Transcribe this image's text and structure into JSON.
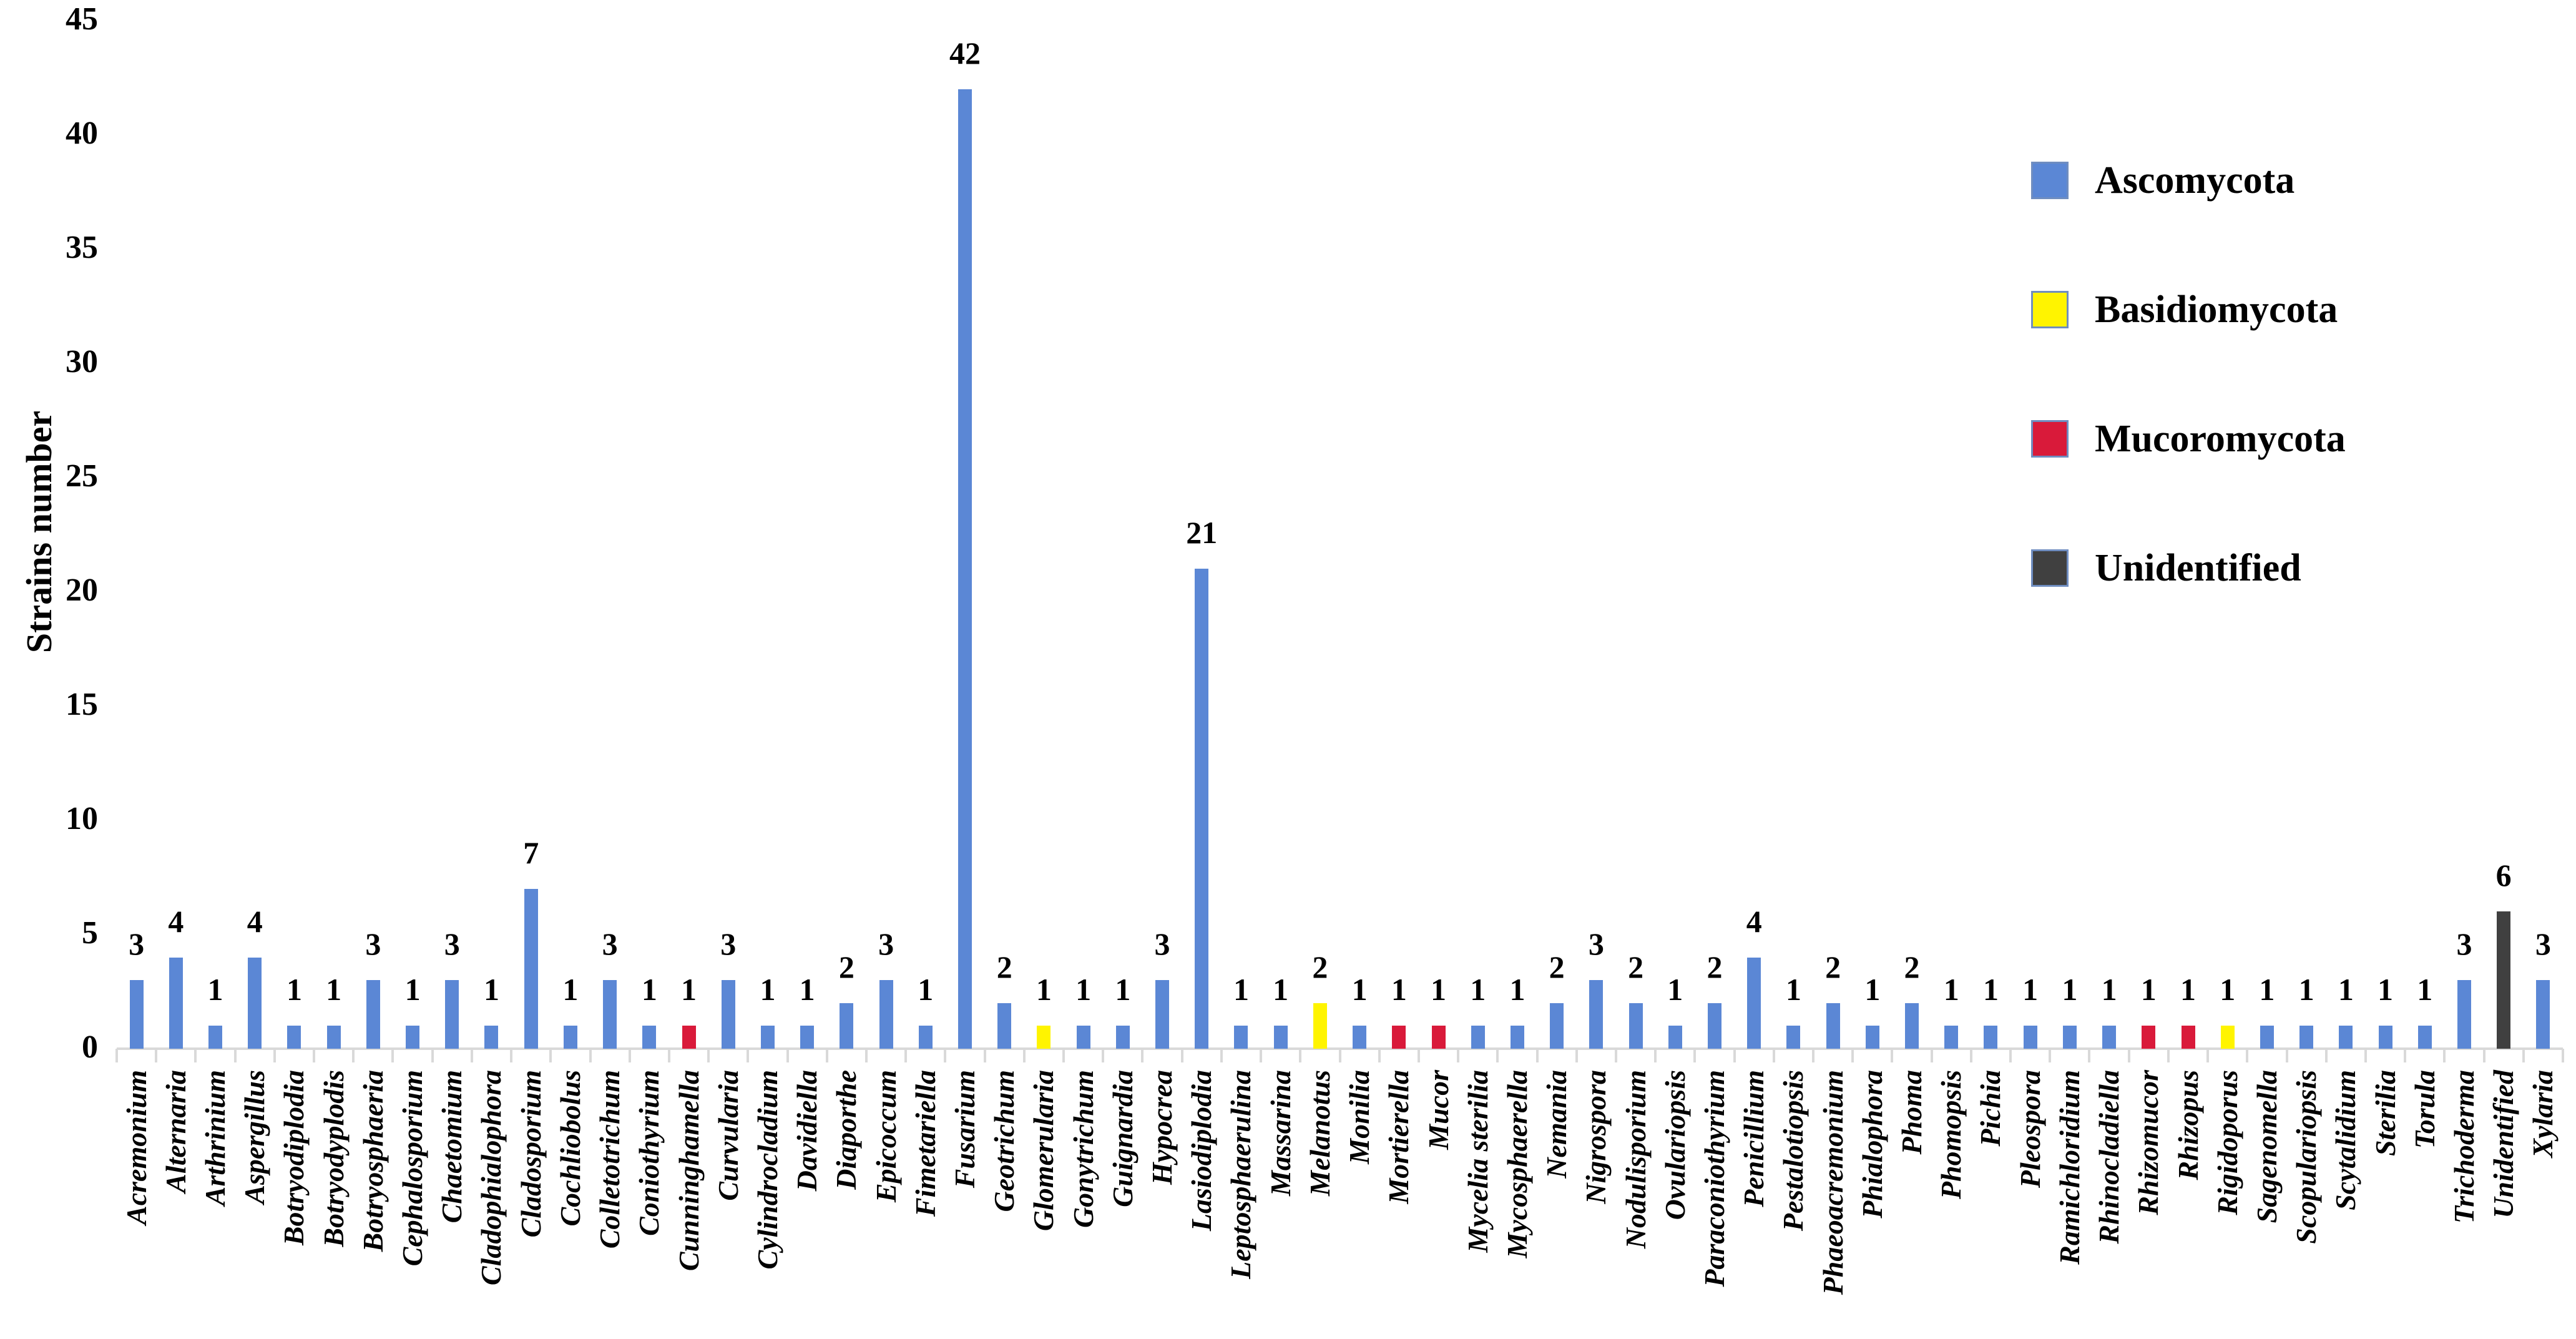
{
  "chart_data": {
    "type": "bar",
    "title": "",
    "xlabel": "",
    "ylabel": "Strains number",
    "ylim": [
      0,
      45
    ],
    "yticks": [
      0,
      5,
      10,
      15,
      20,
      25,
      30,
      35,
      40,
      45
    ],
    "grid": false,
    "bar_value_labels": true,
    "legend_position": "upper right",
    "legend": [
      {
        "label": "Ascomycota",
        "color": "#5b87d5"
      },
      {
        "label": "Basidiomycota",
        "color": "#fff400"
      },
      {
        "label": "Mucoromycota",
        "color": "#d91a3a"
      },
      {
        "label": "Unidentified",
        "color": "#404040"
      }
    ],
    "categories": [
      "Acremonium",
      "Alternaria",
      "Arthrinium",
      "Aspergillus",
      "Botryodiplodia",
      "Botryodyplodis",
      "Botryosphaeria",
      "Cephalosporium",
      "Chaetomium",
      "Cladophialophora",
      "Cladosporium",
      "Cochliobolus",
      "Colletotrichum",
      "Coniothyrium",
      "Cunninghamella",
      "Curvularia",
      "Cylindrocladium",
      "Davidiella",
      "Diaporthe",
      "Epicoccum",
      "Fimetariella",
      "Fusarium",
      "Geotrichum",
      "Glomerularia",
      "Gonytrichum",
      "Guignardia",
      "Hypocrea",
      "Lasiodiplodia",
      "Leptosphaerulina",
      "Massarina",
      "Melanotus",
      "Monilia",
      "Mortierella",
      "Mucor",
      "Mycelia sterilia",
      "Mycosphaerella",
      "Nemania",
      "Nigrospora",
      "Nodulisporium",
      "Ovulariopsis",
      "Paraconiothyrium",
      "Penicillium",
      "Pestalotiopsis",
      "Phaeoacremonium",
      "Phialophora",
      "Phoma",
      "Phomopsis",
      "Pichia",
      "Pleospora",
      "Ramichloridium",
      "Rhinocladiella",
      "Rhizomucor",
      "Rhizopus",
      "Rigidoporus",
      "Sagenomella",
      "Scopulariopsis",
      "Scytalidium",
      "Sterilia",
      "Torula",
      "Trichoderma",
      "Unidentified",
      "Xylaria"
    ],
    "values": [
      3,
      4,
      1,
      4,
      1,
      1,
      3,
      1,
      3,
      1,
      7,
      1,
      3,
      1,
      1,
      3,
      1,
      1,
      2,
      3,
      1,
      42,
      2,
      1,
      1,
      1,
      3,
      21,
      1,
      1,
      2,
      1,
      1,
      1,
      1,
      1,
      2,
      3,
      2,
      1,
      2,
      4,
      1,
      2,
      1,
      2,
      1,
      1,
      1,
      1,
      1,
      1,
      1,
      1,
      1,
      1,
      1,
      1,
      1,
      3,
      6,
      3
    ],
    "groups": [
      "Ascomycota",
      "Ascomycota",
      "Ascomycota",
      "Ascomycota",
      "Ascomycota",
      "Ascomycota",
      "Ascomycota",
      "Ascomycota",
      "Ascomycota",
      "Ascomycota",
      "Ascomycota",
      "Ascomycota",
      "Ascomycota",
      "Ascomycota",
      "Mucoromycota",
      "Ascomycota",
      "Ascomycota",
      "Ascomycota",
      "Ascomycota",
      "Ascomycota",
      "Ascomycota",
      "Ascomycota",
      "Ascomycota",
      "Basidiomycota",
      "Ascomycota",
      "Ascomycota",
      "Ascomycota",
      "Ascomycota",
      "Ascomycota",
      "Ascomycota",
      "Basidiomycota",
      "Ascomycota",
      "Mucoromycota",
      "Mucoromycota",
      "Ascomycota",
      "Ascomycota",
      "Ascomycota",
      "Ascomycota",
      "Ascomycota",
      "Ascomycota",
      "Ascomycota",
      "Ascomycota",
      "Ascomycota",
      "Ascomycota",
      "Ascomycota",
      "Ascomycota",
      "Ascomycota",
      "Ascomycota",
      "Ascomycota",
      "Ascomycota",
      "Ascomycota",
      "Mucoromycota",
      "Mucoromycota",
      "Basidiomycota",
      "Ascomycota",
      "Ascomycota",
      "Ascomycota",
      "Ascomycota",
      "Ascomycota",
      "Ascomycota",
      "Unidentified",
      "Ascomycota"
    ]
  }
}
